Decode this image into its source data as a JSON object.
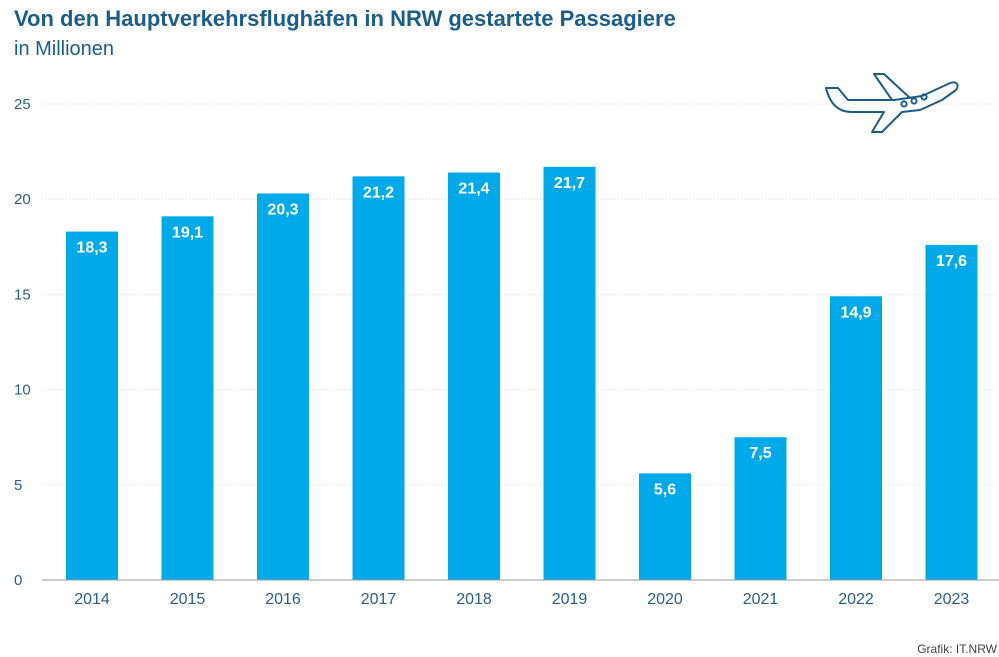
{
  "title": "Von den Hauptverkehrsflughäfen in NRW gestartete Passagiere",
  "subtitle": "in Millionen",
  "source": "Grafik: IT.NRW",
  "colors": {
    "bar": "#00a9e9",
    "title": "#1b5e8c",
    "axis": "#2a5f86",
    "label": "#ffffff"
  },
  "icon": "airplane-icon",
  "chart_data": {
    "type": "bar",
    "categories": [
      "2014",
      "2015",
      "2016",
      "2017",
      "2018",
      "2019",
      "2020",
      "2021",
      "2022",
      "2023"
    ],
    "values": [
      18.3,
      19.1,
      20.3,
      21.2,
      21.4,
      21.7,
      5.6,
      7.5,
      14.9,
      17.6
    ],
    "value_labels": [
      "18,3",
      "19,1",
      "20,3",
      "21,2",
      "21,4",
      "21,7",
      "5,6",
      "7,5",
      "14,9",
      "17,6"
    ],
    "yticks": [
      0,
      5,
      10,
      15,
      20,
      25
    ],
    "ylim": [
      0,
      25
    ],
    "grid": true,
    "legend": "none"
  }
}
